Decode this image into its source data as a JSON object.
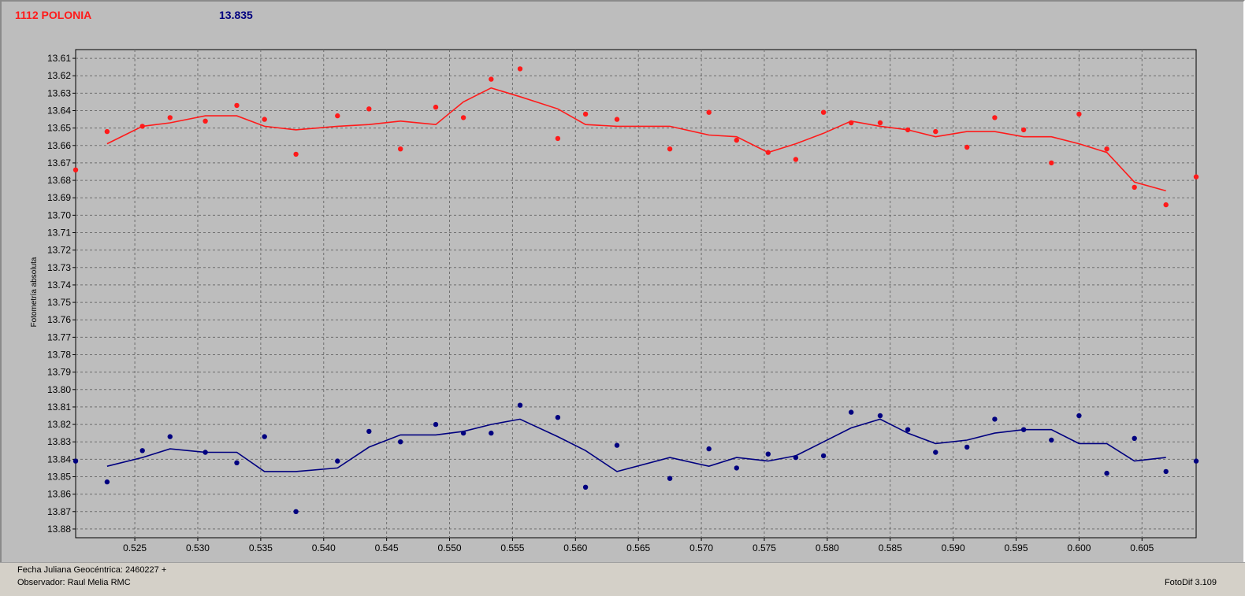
{
  "header": {
    "object_name": "1112 POLONIA",
    "magnitude": "13.835",
    "colors": {
      "object": "#ff1a1a",
      "comparison": "#00007f"
    }
  },
  "footer": {
    "jd_label": "Fecha Juliana Geocéntrica: 2460227 +",
    "observer_label": "Observador: Raul Melia RMC",
    "version_label": "FotoDif 3.109"
  },
  "chart_data": {
    "type": "scatter",
    "title": "",
    "xlabel": "",
    "ylabel": "Fotometría absoluta",
    "xlim": [
      0.5203,
      0.6093
    ],
    "ylim": [
      13.885,
      13.605
    ],
    "y_inverted": true,
    "grid": true,
    "x_ticks": [
      "0.525",
      "0.530",
      "0.535",
      "0.540",
      "0.545",
      "0.550",
      "0.555",
      "0.560",
      "0.565",
      "0.570",
      "0.575",
      "0.580",
      "0.585",
      "0.590",
      "0.595",
      "0.600",
      "0.605"
    ],
    "y_ticks": [
      "13.61",
      "13.62",
      "13.63",
      "13.64",
      "13.65",
      "13.66",
      "13.67",
      "13.68",
      "13.69",
      "13.70",
      "13.71",
      "13.72",
      "13.73",
      "13.74",
      "13.75",
      "13.76",
      "13.77",
      "13.78",
      "13.79",
      "13.80",
      "13.81",
      "13.82",
      "13.83",
      "13.84",
      "13.85",
      "13.86",
      "13.87",
      "13.88"
    ],
    "series": [
      {
        "color": "#ff1a1a",
        "points": [
          [
            0.5203,
            13.674
          ],
          [
            0.5228,
            13.652
          ],
          [
            0.5256,
            13.649
          ],
          [
            0.5278,
            13.644
          ],
          [
            0.5306,
            13.646
          ],
          [
            0.5331,
            13.637
          ],
          [
            0.5353,
            13.645
          ],
          [
            0.5378,
            13.665
          ],
          [
            0.5411,
            13.643
          ],
          [
            0.5436,
            13.639
          ],
          [
            0.5461,
            13.662
          ],
          [
            0.5489,
            13.638
          ],
          [
            0.5511,
            13.644
          ],
          [
            0.5533,
            13.622
          ],
          [
            0.5556,
            13.616
          ],
          [
            0.5586,
            13.656
          ],
          [
            0.5608,
            13.642
          ],
          [
            0.5633,
            13.645
          ],
          [
            0.5675,
            13.662
          ],
          [
            0.5706,
            13.641
          ],
          [
            0.5728,
            13.657
          ],
          [
            0.5753,
            13.664
          ],
          [
            0.5775,
            13.668
          ],
          [
            0.5797,
            13.641
          ],
          [
            0.5819,
            13.647
          ],
          [
            0.5842,
            13.647
          ],
          [
            0.5864,
            13.651
          ],
          [
            0.5886,
            13.652
          ],
          [
            0.5911,
            13.661
          ],
          [
            0.5933,
            13.644
          ],
          [
            0.5956,
            13.651
          ],
          [
            0.5978,
            13.67
          ],
          [
            0.6,
            13.642
          ],
          [
            0.6022,
            13.662
          ],
          [
            0.6044,
            13.684
          ],
          [
            0.6069,
            13.694
          ],
          [
            0.6093,
            13.678
          ]
        ],
        "trend": [
          [
            0.5228,
            13.659
          ],
          [
            0.5256,
            13.649
          ],
          [
            0.5278,
            13.647
          ],
          [
            0.5306,
            13.643
          ],
          [
            0.5331,
            13.643
          ],
          [
            0.5353,
            13.649
          ],
          [
            0.5378,
            13.651
          ],
          [
            0.5411,
            13.649
          ],
          [
            0.5436,
            13.648
          ],
          [
            0.5461,
            13.646
          ],
          [
            0.5489,
            13.648
          ],
          [
            0.5511,
            13.635
          ],
          [
            0.5533,
            13.627
          ],
          [
            0.5556,
            13.632
          ],
          [
            0.5586,
            13.639
          ],
          [
            0.5608,
            13.648
          ],
          [
            0.5633,
            13.649
          ],
          [
            0.5675,
            13.649
          ],
          [
            0.5706,
            13.654
          ],
          [
            0.5728,
            13.655
          ],
          [
            0.5753,
            13.664
          ],
          [
            0.5775,
            13.659
          ],
          [
            0.5797,
            13.653
          ],
          [
            0.5819,
            13.646
          ],
          [
            0.5842,
            13.649
          ],
          [
            0.5864,
            13.651
          ],
          [
            0.5886,
            13.655
          ],
          [
            0.5911,
            13.652
          ],
          [
            0.5933,
            13.652
          ],
          [
            0.5956,
            13.655
          ],
          [
            0.5978,
            13.655
          ],
          [
            0.6,
            13.659
          ],
          [
            0.6022,
            13.664
          ],
          [
            0.6044,
            13.681
          ],
          [
            0.6069,
            13.686
          ]
        ]
      },
      {
        "color": "#00007f",
        "points": [
          [
            0.5203,
            13.841
          ],
          [
            0.5228,
            13.853
          ],
          [
            0.5256,
            13.835
          ],
          [
            0.5278,
            13.827
          ],
          [
            0.5306,
            13.836
          ],
          [
            0.5331,
            13.842
          ],
          [
            0.5353,
            13.827
          ],
          [
            0.5378,
            13.87
          ],
          [
            0.5411,
            13.841
          ],
          [
            0.5436,
            13.824
          ],
          [
            0.5461,
            13.83
          ],
          [
            0.5489,
            13.82
          ],
          [
            0.5511,
            13.825
          ],
          [
            0.5533,
            13.825
          ],
          [
            0.5556,
            13.809
          ],
          [
            0.5586,
            13.816
          ],
          [
            0.5608,
            13.856
          ],
          [
            0.5633,
            13.832
          ],
          [
            0.5675,
            13.851
          ],
          [
            0.5706,
            13.834
          ],
          [
            0.5728,
            13.845
          ],
          [
            0.5753,
            13.837
          ],
          [
            0.5775,
            13.839
          ],
          [
            0.5797,
            13.838
          ],
          [
            0.5819,
            13.813
          ],
          [
            0.5842,
            13.815
          ],
          [
            0.5864,
            13.823
          ],
          [
            0.5886,
            13.836
          ],
          [
            0.5911,
            13.833
          ],
          [
            0.5933,
            13.817
          ],
          [
            0.5956,
            13.823
          ],
          [
            0.5978,
            13.829
          ],
          [
            0.6,
            13.815
          ],
          [
            0.6022,
            13.848
          ],
          [
            0.6044,
            13.828
          ],
          [
            0.6069,
            13.847
          ],
          [
            0.6093,
            13.841
          ]
        ],
        "trend": [
          [
            0.5228,
            13.844
          ],
          [
            0.5256,
            13.839
          ],
          [
            0.5278,
            13.834
          ],
          [
            0.5306,
            13.836
          ],
          [
            0.5331,
            13.836
          ],
          [
            0.5353,
            13.847
          ],
          [
            0.5378,
            13.847
          ],
          [
            0.5411,
            13.845
          ],
          [
            0.5436,
            13.833
          ],
          [
            0.5461,
            13.826
          ],
          [
            0.5489,
            13.826
          ],
          [
            0.5511,
            13.824
          ],
          [
            0.5533,
            13.82
          ],
          [
            0.5556,
            13.817
          ],
          [
            0.5586,
            13.827
          ],
          [
            0.5608,
            13.835
          ],
          [
            0.5633,
            13.847
          ],
          [
            0.5675,
            13.839
          ],
          [
            0.5706,
            13.844
          ],
          [
            0.5728,
            13.839
          ],
          [
            0.5753,
            13.841
          ],
          [
            0.5775,
            13.838
          ],
          [
            0.5797,
            13.83
          ],
          [
            0.5819,
            13.822
          ],
          [
            0.5842,
            13.817
          ],
          [
            0.5864,
            13.825
          ],
          [
            0.5886,
            13.831
          ],
          [
            0.5911,
            13.829
          ],
          [
            0.5933,
            13.825
          ],
          [
            0.5956,
            13.823
          ],
          [
            0.5978,
            13.823
          ],
          [
            0.6,
            13.831
          ],
          [
            0.6022,
            13.831
          ],
          [
            0.6044,
            13.841
          ],
          [
            0.6069,
            13.839
          ]
        ]
      }
    ]
  }
}
